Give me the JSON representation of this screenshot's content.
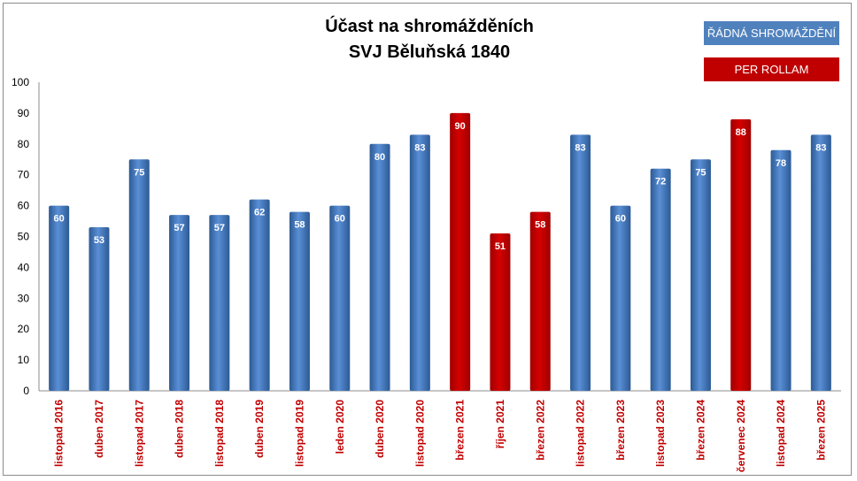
{
  "chart_data": {
    "type": "bar",
    "title": [
      "Účast na shromážděních",
      "SVJ Běluňská 1840"
    ],
    "categories": [
      "listopad 2016",
      "duben 2017",
      "listopad 2017",
      "duben 2018",
      "listopad 2018",
      "duben 2019",
      "listopad 2019",
      "leden 2020",
      "duben 2020",
      "listopad 2020",
      "březen 2021",
      "říjen 2021",
      "březen 2022",
      "listopad 2022",
      "březen 2023",
      "listopad 2023",
      "březen 2024",
      "červenec 2024",
      "listopad 2024",
      "březen 2025"
    ],
    "values": [
      60,
      53,
      75,
      57,
      57,
      62,
      58,
      60,
      80,
      83,
      90,
      51,
      58,
      83,
      60,
      72,
      75,
      88,
      78,
      83
    ],
    "types": [
      "R",
      "R",
      "R",
      "R",
      "R",
      "R",
      "R",
      "R",
      "R",
      "R",
      "P",
      "P",
      "P",
      "R",
      "R",
      "R",
      "R",
      "P",
      "R",
      "R"
    ],
    "legend": [
      {
        "key": "R",
        "name": "ŘÁDNÁ SHROMÁŽDĚNÍ",
        "color": "#4f81bd"
      },
      {
        "key": "P",
        "name": "PER ROLLAM",
        "color": "#c00000"
      }
    ],
    "legend_position": "top-right",
    "ylim": [
      0,
      100
    ],
    "yticks": [
      0,
      10,
      20,
      30,
      40,
      50,
      60,
      70,
      80,
      90,
      100
    ],
    "grid": false,
    "xlabel": "",
    "ylabel": "",
    "category_label_color": "#c00000"
  }
}
